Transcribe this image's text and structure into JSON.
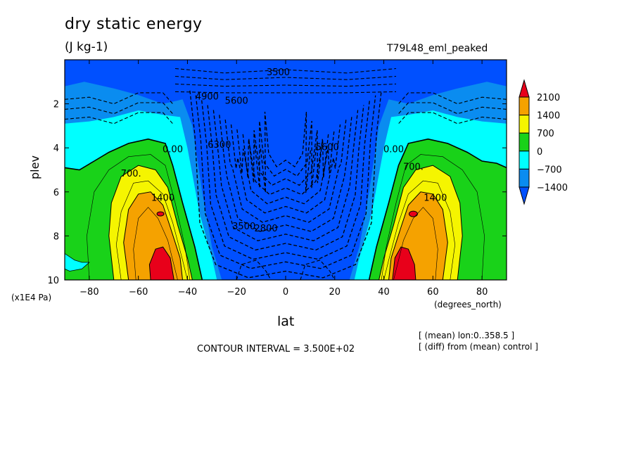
{
  "figure": {
    "title": "dry static energy",
    "units": "(J kg-1)",
    "run_label": "T79L48_eml_peaked",
    "x_axis_units": "(degrees_north)",
    "y_axis_units": "(x1E4 Pa)",
    "contour_interval_text": "CONTOUR INTERVAL = 3.500E+02",
    "notes": [
      "[ (mean) lon:0..358.5 ]",
      "[ (diff) from (mean) control ]"
    ]
  },
  "chart_data": {
    "type": "heatmap",
    "xlabel": "lat",
    "ylabel": "plev",
    "xlim": [
      -90,
      90
    ],
    "ylim": [
      0,
      10
    ],
    "y_inverted": true,
    "x_ticks": [
      -80,
      -60,
      -40,
      -20,
      0,
      20,
      40,
      60,
      80
    ],
    "y_ticks": [
      2,
      4,
      6,
      8,
      10
    ],
    "contour_interval": 350,
    "colorbar": {
      "levels": [
        2100,
        1400,
        700,
        0,
        -700,
        -1400
      ],
      "labels": [
        "2100",
        "1400",
        "700",
        "0",
        "−700",
        "−1400"
      ],
      "colors": [
        "#e8001a",
        "#f5a200",
        "#f5f500",
        "#19d219",
        "#00ffff",
        "#0a8cf0",
        "#0050ff"
      ],
      "position": "right"
    },
    "contour_labels": [
      {
        "text": "3500",
        "lat": -3,
        "plev": 0.7
      },
      {
        "text": "4900",
        "lat": -32,
        "plev": 1.8
      },
      {
        "text": "5600",
        "lat": -20,
        "plev": 2.0
      },
      {
        "text": "6300",
        "lat": -27,
        "plev": 4.0
      },
      {
        "text": "5600",
        "lat": 17,
        "plev": 4.1
      },
      {
        "text": "3500",
        "lat": -17,
        "plev": 7.7
      },
      {
        "text": "2800",
        "lat": -8,
        "plev": 7.8
      },
      {
        "text": "700.",
        "lat": -63,
        "plev": 5.3
      },
      {
        "text": "1400",
        "lat": -50,
        "plev": 6.4
      },
      {
        "text": "0.00",
        "lat": -46,
        "plev": 4.2
      },
      {
        "text": "700.",
        "lat": 52,
        "plev": 5.0
      },
      {
        "text": "1400",
        "lat": 61,
        "plev": 6.4
      },
      {
        "text": "0.00",
        "lat": 44,
        "plev": 4.2
      }
    ],
    "features": [
      {
        "name": "southern positive maximum",
        "lat_center": -50,
        "plev_center": 8.7,
        "max_value": 2100
      },
      {
        "name": "northern positive maximum",
        "lat_center": 48,
        "plev_center": 8.8,
        "max_value": 2100
      },
      {
        "name": "tropical upper negative minimum",
        "lat_center": 0,
        "plev_center": 2.5,
        "min_value": -6300
      }
    ]
  }
}
